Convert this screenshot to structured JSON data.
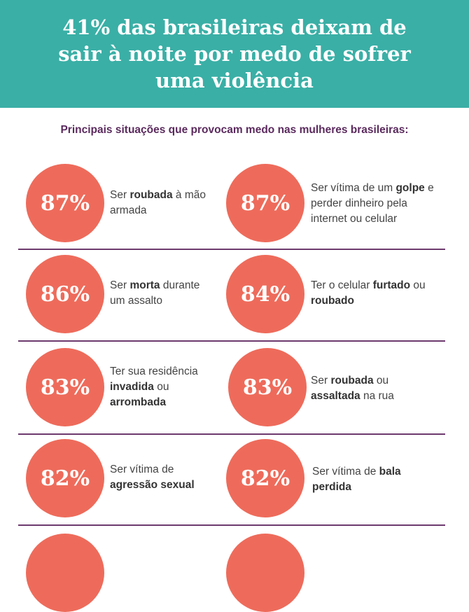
{
  "header": {
    "title": "41% das brasileiras deixam de sair à noite por medo de sofrer uma violência"
  },
  "subtitle": "Principais situações que provocam medo nas mulheres brasileiras:",
  "colors": {
    "header_bg": "#3aafa6",
    "circle": "#ee6b5b",
    "divider": "#6d3a6e",
    "subtitle": "#5b2a5e"
  },
  "items": [
    {
      "pct": "87%",
      "parts": [
        {
          "t": "Ser "
        },
        {
          "t": "roubada",
          "b": true
        },
        {
          "t": " à mão armada"
        }
      ]
    },
    {
      "pct": "87%",
      "parts": [
        {
          "t": "Ser vítima de um "
        },
        {
          "t": "golpe",
          "b": true
        },
        {
          "t": " e perder dinheiro pela internet ou celular"
        }
      ]
    },
    {
      "pct": "86%",
      "parts": [
        {
          "t": "Ser "
        },
        {
          "t": "morta",
          "b": true
        },
        {
          "t": " durante um assalto"
        }
      ]
    },
    {
      "pct": "84%",
      "parts": [
        {
          "t": "Ter o celular "
        },
        {
          "t": "furtado",
          "b": true
        },
        {
          "t": " ou "
        },
        {
          "t": "roubado",
          "b": true
        }
      ]
    },
    {
      "pct": "83%",
      "parts": [
        {
          "t": "Ter sua residência "
        },
        {
          "t": "invadida",
          "b": true
        },
        {
          "t": " ou "
        },
        {
          "t": "arrombada",
          "b": true
        }
      ]
    },
    {
      "pct": "83%",
      "parts": [
        {
          "t": "Ser "
        },
        {
          "t": "roubada",
          "b": true
        },
        {
          "t": " ou "
        },
        {
          "t": "assaltada",
          "b": true
        },
        {
          "t": " na rua"
        }
      ]
    },
    {
      "pct": "82%",
      "parts": [
        {
          "t": "Ser vítima de "
        },
        {
          "t": "agressão sexual",
          "b": true
        }
      ]
    },
    {
      "pct": "82%",
      "parts": [
        {
          "t": "Ser vítima de "
        },
        {
          "t": "bala perdida",
          "b": true
        }
      ]
    }
  ]
}
